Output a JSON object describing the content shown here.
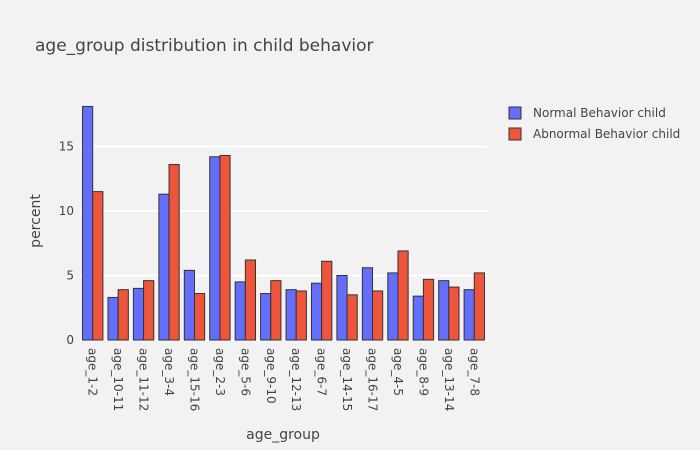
{
  "chart_data": {
    "type": "bar",
    "title": "age_group distribution in child behavior",
    "xlabel": "age_group",
    "ylabel": "percent",
    "ylim": [
      0,
      18.6
    ],
    "yticks": [
      0,
      5,
      10,
      15
    ],
    "grid": true,
    "legend_position": "top-right",
    "categories": [
      "age_1-2",
      "age_10-11",
      "age_11-12",
      "age_3-4",
      "age_15-16",
      "age_2-3",
      "age_5-6",
      "age_9-10",
      "age_12-13",
      "age_6-7",
      "age_14-15",
      "age_16-17",
      "age_4-5",
      "age_8-9",
      "age_13-14",
      "age_7-8"
    ],
    "series": [
      {
        "name": "Normal Behavior child",
        "color": "#636efa",
        "values": [
          18.1,
          3.3,
          4.0,
          11.3,
          5.4,
          14.2,
          4.5,
          3.6,
          3.9,
          4.4,
          5.0,
          5.6,
          5.2,
          3.4,
          4.6,
          3.9
        ]
      },
      {
        "name": "Abnormal Behavior child",
        "color": "#ef553b",
        "values": [
          11.5,
          3.9,
          4.6,
          13.6,
          3.6,
          14.3,
          6.2,
          4.6,
          3.8,
          6.1,
          3.5,
          3.8,
          6.9,
          4.7,
          4.1,
          5.2
        ]
      }
    ]
  }
}
